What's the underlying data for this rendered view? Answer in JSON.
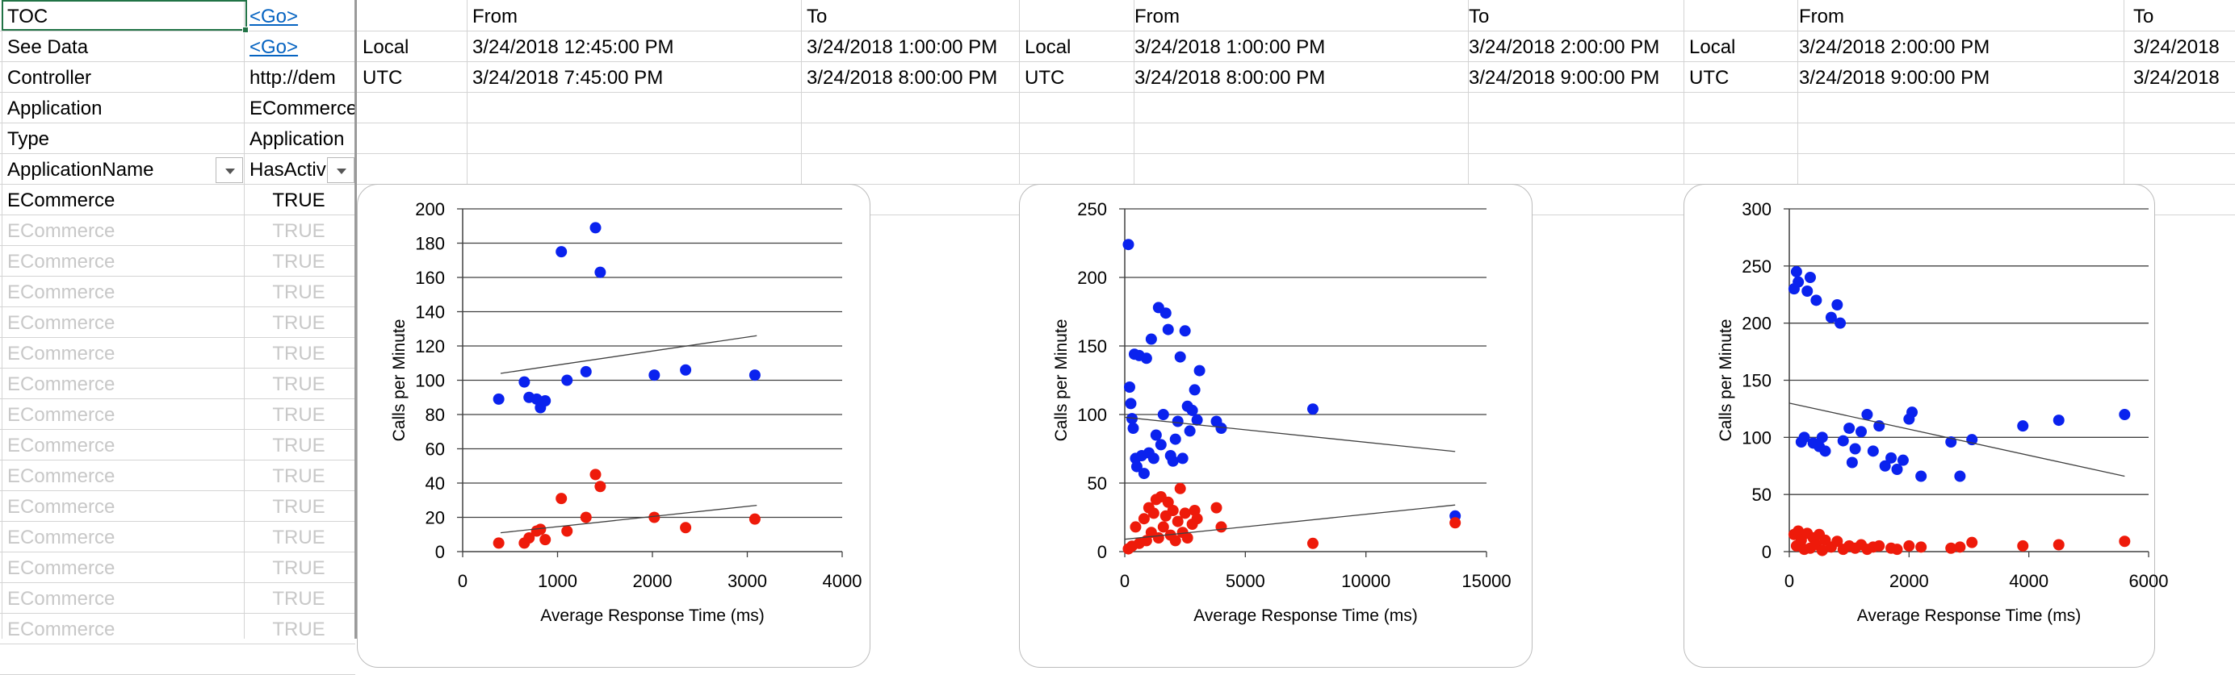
{
  "sheet": {
    "labels": [
      {
        "key": "TOC",
        "value": "<Go>",
        "link": true
      },
      {
        "key": "See Data",
        "value": "<Go>",
        "link": true
      },
      {
        "key": "Controller",
        "value": "http://dem",
        "link": false
      },
      {
        "key": "Application",
        "value": "ECommerce",
        "link": false
      },
      {
        "key": "Type",
        "value": "Application",
        "link": false
      }
    ],
    "header": {
      "col1": "ApplicationName",
      "col2": "HasActiv"
    },
    "rows": [
      {
        "name": "ECommerce",
        "value": "TRUE"
      },
      {
        "name": "ECommerce",
        "value": "TRUE"
      },
      {
        "name": "ECommerce",
        "value": "TRUE"
      },
      {
        "name": "ECommerce",
        "value": "TRUE"
      },
      {
        "name": "ECommerce",
        "value": "TRUE"
      },
      {
        "name": "ECommerce",
        "value": "TRUE"
      },
      {
        "name": "ECommerce",
        "value": "TRUE"
      },
      {
        "name": "ECommerce",
        "value": "TRUE"
      },
      {
        "name": "ECommerce",
        "value": "TRUE"
      },
      {
        "name": "ECommerce",
        "value": "TRUE"
      },
      {
        "name": "ECommerce",
        "value": "TRUE"
      },
      {
        "name": "ECommerce",
        "value": "TRUE"
      },
      {
        "name": "ECommerce",
        "value": "TRUE"
      },
      {
        "name": "ECommerce",
        "value": "TRUE"
      },
      {
        "name": "ECommerce",
        "value": "TRUE"
      }
    ]
  },
  "time_blocks": [
    {
      "from_label": "From",
      "to_label": "To",
      "local_label": "Local",
      "utc_label": "UTC",
      "local_from": "3/24/2018 12:45:00 PM",
      "local_to": "3/24/2018 1:00:00 PM",
      "utc_from": "3/24/2018 7:45:00 PM",
      "utc_to": "3/24/2018 8:00:00 PM"
    },
    {
      "from_label": "From",
      "to_label": "To",
      "local_label": "Local",
      "utc_label": "UTC",
      "local_from": "3/24/2018 1:00:00 PM",
      "local_to": "3/24/2018 2:00:00 PM",
      "utc_from": "3/24/2018 8:00:00 PM",
      "utc_to": "3/24/2018 9:00:00 PM"
    },
    {
      "from_label": "From",
      "to_label": "To",
      "local_label": "Local",
      "utc_label": "UTC",
      "local_from": "3/24/2018 2:00:00 PM",
      "local_to": "3/24/2018",
      "utc_from": "3/24/2018 9:00:00 PM",
      "utc_to": "3/24/2018"
    }
  ],
  "colors": {
    "blue_series": "#0a22ee",
    "red_series": "#ee1a0a",
    "gridline": "#404040",
    "trend": "#404040"
  },
  "chart_data": [
    {
      "type": "scatter",
      "title": "",
      "xlabel": "Average Response Time (ms)",
      "ylabel": "Calls per Minute",
      "xlim": [
        0,
        4000
      ],
      "ylim": [
        0,
        200
      ],
      "xticks": [
        0,
        1000,
        2000,
        3000,
        4000
      ],
      "yticks": [
        0,
        20,
        40,
        60,
        80,
        100,
        120,
        140,
        160,
        180,
        200
      ],
      "trendlines": [
        {
          "x": [
            400,
            3100
          ],
          "y": [
            104,
            126
          ]
        },
        {
          "x": [
            400,
            3100
          ],
          "y": [
            11,
            27
          ]
        }
      ],
      "series": [
        {
          "color": "blue",
          "points": [
            [
              380,
              89
            ],
            [
              650,
              99
            ],
            [
              700,
              90
            ],
            [
              780,
              89
            ],
            [
              820,
              84
            ],
            [
              870,
              88
            ],
            [
              1040,
              175
            ],
            [
              1100,
              100
            ],
            [
              1300,
              105
            ],
            [
              1400,
              189
            ],
            [
              1450,
              163
            ],
            [
              2020,
              103
            ],
            [
              2350,
              106
            ],
            [
              3080,
              103
            ]
          ]
        },
        {
          "color": "red",
          "points": [
            [
              380,
              5
            ],
            [
              650,
              5
            ],
            [
              700,
              8
            ],
            [
              780,
              12
            ],
            [
              820,
              13
            ],
            [
              870,
              7
            ],
            [
              1040,
              31
            ],
            [
              1100,
              12
            ],
            [
              1300,
              20
            ],
            [
              1400,
              45
            ],
            [
              1450,
              38
            ],
            [
              2020,
              20
            ],
            [
              2350,
              14
            ],
            [
              3080,
              19
            ]
          ]
        }
      ]
    },
    {
      "type": "scatter",
      "title": "",
      "xlabel": "Average Response Time (ms)",
      "ylabel": "Calls per Minute",
      "xlim": [
        0,
        15000
      ],
      "ylim": [
        0,
        250
      ],
      "xticks": [
        0,
        5000,
        10000,
        15000
      ],
      "yticks": [
        0,
        50,
        100,
        150,
        200,
        250
      ],
      "trendlines": [
        {
          "x": [
            0,
            13700
          ],
          "y": [
            98,
            73
          ]
        },
        {
          "x": [
            0,
            13700
          ],
          "y": [
            9,
            34
          ]
        }
      ],
      "series": [
        {
          "color": "blue",
          "points": [
            [
              150,
              224
            ],
            [
              200,
              120
            ],
            [
              250,
              108
            ],
            [
              300,
              97
            ],
            [
              350,
              90
            ],
            [
              400,
              144
            ],
            [
              450,
              68
            ],
            [
              500,
              62
            ],
            [
              600,
              143
            ],
            [
              700,
              70
            ],
            [
              800,
              57
            ],
            [
              900,
              141
            ],
            [
              1000,
              72
            ],
            [
              1100,
              155
            ],
            [
              1200,
              68
            ],
            [
              1300,
              85
            ],
            [
              1400,
              178
            ],
            [
              1500,
              78
            ],
            [
              1600,
              100
            ],
            [
              1700,
              174
            ],
            [
              1800,
              162
            ],
            [
              1900,
              70
            ],
            [
              2000,
              66
            ],
            [
              2100,
              82
            ],
            [
              2200,
              95
            ],
            [
              2300,
              142
            ],
            [
              2400,
              68
            ],
            [
              2500,
              161
            ],
            [
              2600,
              106
            ],
            [
              2700,
              88
            ],
            [
              2800,
              103
            ],
            [
              2900,
              118
            ],
            [
              3000,
              96
            ],
            [
              3100,
              132
            ],
            [
              3800,
              95
            ],
            [
              4000,
              90
            ],
            [
              7800,
              104
            ],
            [
              13700,
              26
            ]
          ]
        },
        {
          "color": "red",
          "points": [
            [
              150,
              2
            ],
            [
              300,
              4
            ],
            [
              450,
              18
            ],
            [
              600,
              6
            ],
            [
              800,
              24
            ],
            [
              900,
              8
            ],
            [
              1000,
              32
            ],
            [
              1100,
              14
            ],
            [
              1200,
              28
            ],
            [
              1300,
              38
            ],
            [
              1400,
              10
            ],
            [
              1500,
              40
            ],
            [
              1600,
              18
            ],
            [
              1700,
              26
            ],
            [
              1800,
              36
            ],
            [
              1900,
              12
            ],
            [
              2000,
              30
            ],
            [
              2100,
              8
            ],
            [
              2200,
              22
            ],
            [
              2300,
              46
            ],
            [
              2400,
              14
            ],
            [
              2500,
              28
            ],
            [
              2600,
              10
            ],
            [
              2800,
              20
            ],
            [
              2900,
              30
            ],
            [
              3000,
              24
            ],
            [
              3800,
              32
            ],
            [
              4000,
              18
            ],
            [
              7800,
              6
            ],
            [
              13700,
              21
            ]
          ]
        }
      ]
    },
    {
      "type": "scatter",
      "title": "",
      "xlabel": "Average Response Time (ms)",
      "ylabel": "Calls per Minute",
      "xlim": [
        0,
        6000
      ],
      "ylim": [
        0,
        300
      ],
      "xticks": [
        0,
        2000,
        4000,
        6000
      ],
      "yticks": [
        0,
        50,
        100,
        150,
        200,
        250,
        300
      ],
      "trendlines": [
        {
          "x": [
            0,
            5600
          ],
          "y": [
            130,
            66
          ]
        }
      ],
      "series": [
        {
          "color": "blue",
          "points": [
            [
              80,
              230
            ],
            [
              120,
              245
            ],
            [
              150,
              236
            ],
            [
              200,
              96
            ],
            [
              250,
              100
            ],
            [
              300,
              228
            ],
            [
              350,
              240
            ],
            [
              400,
              95
            ],
            [
              450,
              220
            ],
            [
              500,
              92
            ],
            [
              550,
              100
            ],
            [
              600,
              88
            ],
            [
              700,
              205
            ],
            [
              800,
              216
            ],
            [
              850,
              200
            ],
            [
              900,
              97
            ],
            [
              1000,
              108
            ],
            [
              1050,
              78
            ],
            [
              1100,
              90
            ],
            [
              1200,
              105
            ],
            [
              1300,
              120
            ],
            [
              1400,
              88
            ],
            [
              1500,
              110
            ],
            [
              1600,
              75
            ],
            [
              1700,
              82
            ],
            [
              1800,
              72
            ],
            [
              1900,
              80
            ],
            [
              2000,
              116
            ],
            [
              2050,
              122
            ],
            [
              2200,
              66
            ],
            [
              2700,
              96
            ],
            [
              2850,
              66
            ],
            [
              3050,
              98
            ],
            [
              3900,
              110
            ],
            [
              4500,
              115
            ],
            [
              5600,
              120
            ]
          ]
        },
        {
          "color": "red",
          "points": [
            [
              80,
              15
            ],
            [
              120,
              5
            ],
            [
              150,
              18
            ],
            [
              200,
              10
            ],
            [
              250,
              2
            ],
            [
              300,
              16
            ],
            [
              350,
              3
            ],
            [
              400,
              12
            ],
            [
              450,
              6
            ],
            [
              500,
              15
            ],
            [
              550,
              1
            ],
            [
              600,
              10
            ],
            [
              700,
              4
            ],
            [
              800,
              9
            ],
            [
              900,
              2
            ],
            [
              1000,
              5
            ],
            [
              1100,
              3
            ],
            [
              1200,
              6
            ],
            [
              1300,
              2
            ],
            [
              1400,
              4
            ],
            [
              1500,
              5
            ],
            [
              1700,
              3
            ],
            [
              1800,
              2
            ],
            [
              2000,
              5
            ],
            [
              2200,
              4
            ],
            [
              2700,
              3
            ],
            [
              2850,
              4
            ],
            [
              3050,
              8
            ],
            [
              3900,
              5
            ],
            [
              4500,
              6
            ],
            [
              5600,
              9
            ]
          ]
        }
      ]
    }
  ]
}
